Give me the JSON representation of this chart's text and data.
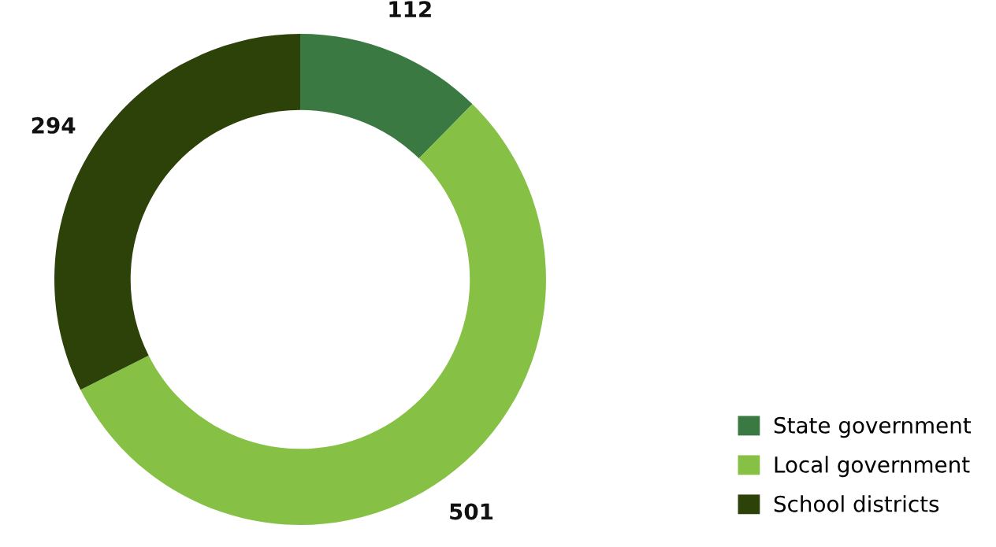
{
  "chart_data": {
    "type": "donut",
    "categories": [
      "State government",
      "Local government",
      "School districts"
    ],
    "values": [
      112,
      501,
      294
    ],
    "colors": [
      "#3a7a42",
      "#86c146",
      "#2d4208"
    ],
    "data_labels": true,
    "legend": "bottom right"
  }
}
